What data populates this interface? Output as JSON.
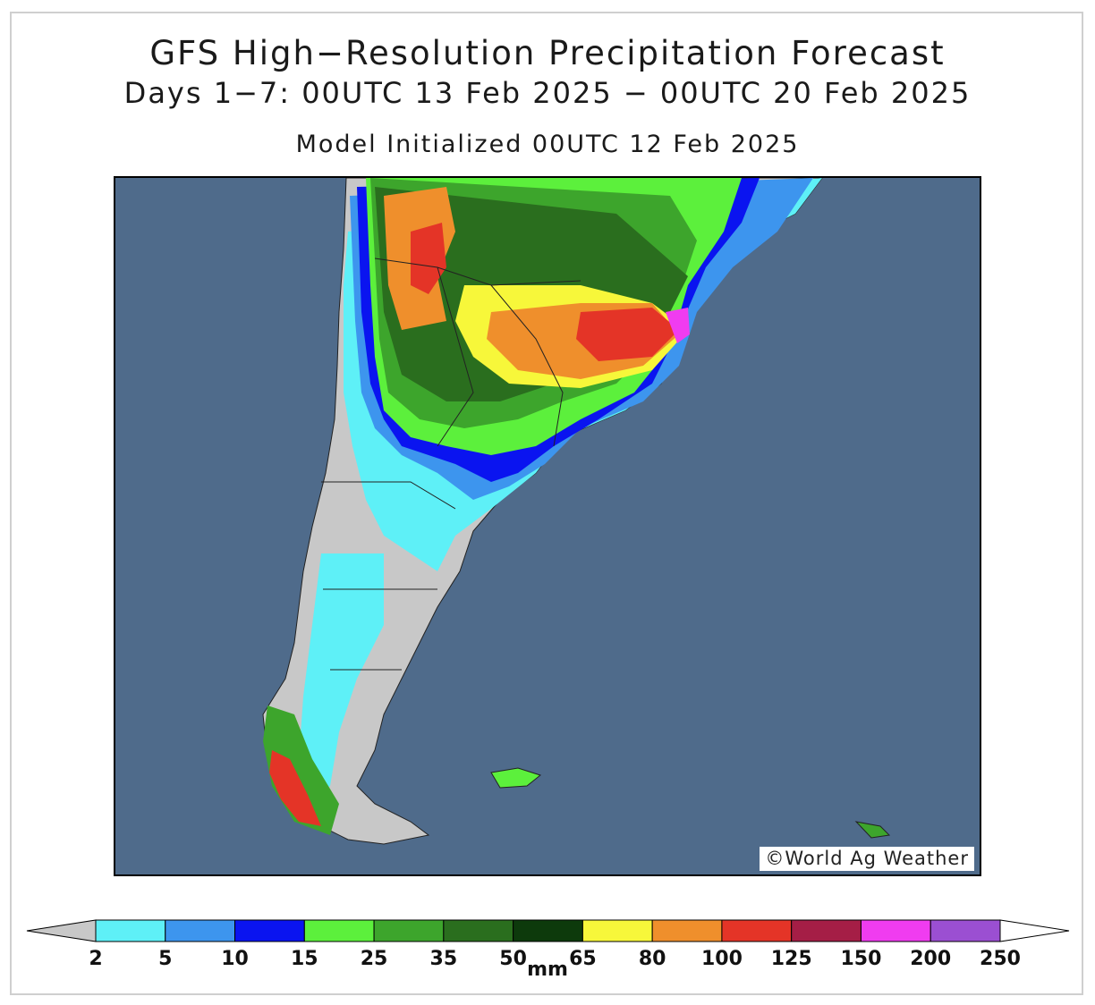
{
  "header": {
    "title": "GFS High−Resolution Precipitation Forecast",
    "subtitle": "Days 1−7: 00UTC 13 Feb 2025 − 00UTC 20 Feb 2025",
    "init": "Model Initialized 00UTC 12 Feb 2025"
  },
  "map": {
    "credit": "©World Ag Weather",
    "ocean_color": "#4f6b8b",
    "land_dry_color": "#c8c8c8"
  },
  "legend": {
    "unit": "mm",
    "ticks": [
      "2",
      "5",
      "10",
      "15",
      "25",
      "35",
      "50",
      "65",
      "80",
      "100",
      "125",
      "150",
      "200",
      "250"
    ],
    "colors": [
      "#5ef0f7",
      "#3d95ee",
      "#0a14f0",
      "#5cf03c",
      "#3da52c",
      "#2a6e1e",
      "#0d3a0c",
      "#f7f73a",
      "#ef8f2c",
      "#e43427",
      "#a51e46",
      "#f03cf0",
      "#9b4fd2"
    ],
    "below_min_color": "#c8c8c8",
    "above_max_color": "#ffffff"
  }
}
